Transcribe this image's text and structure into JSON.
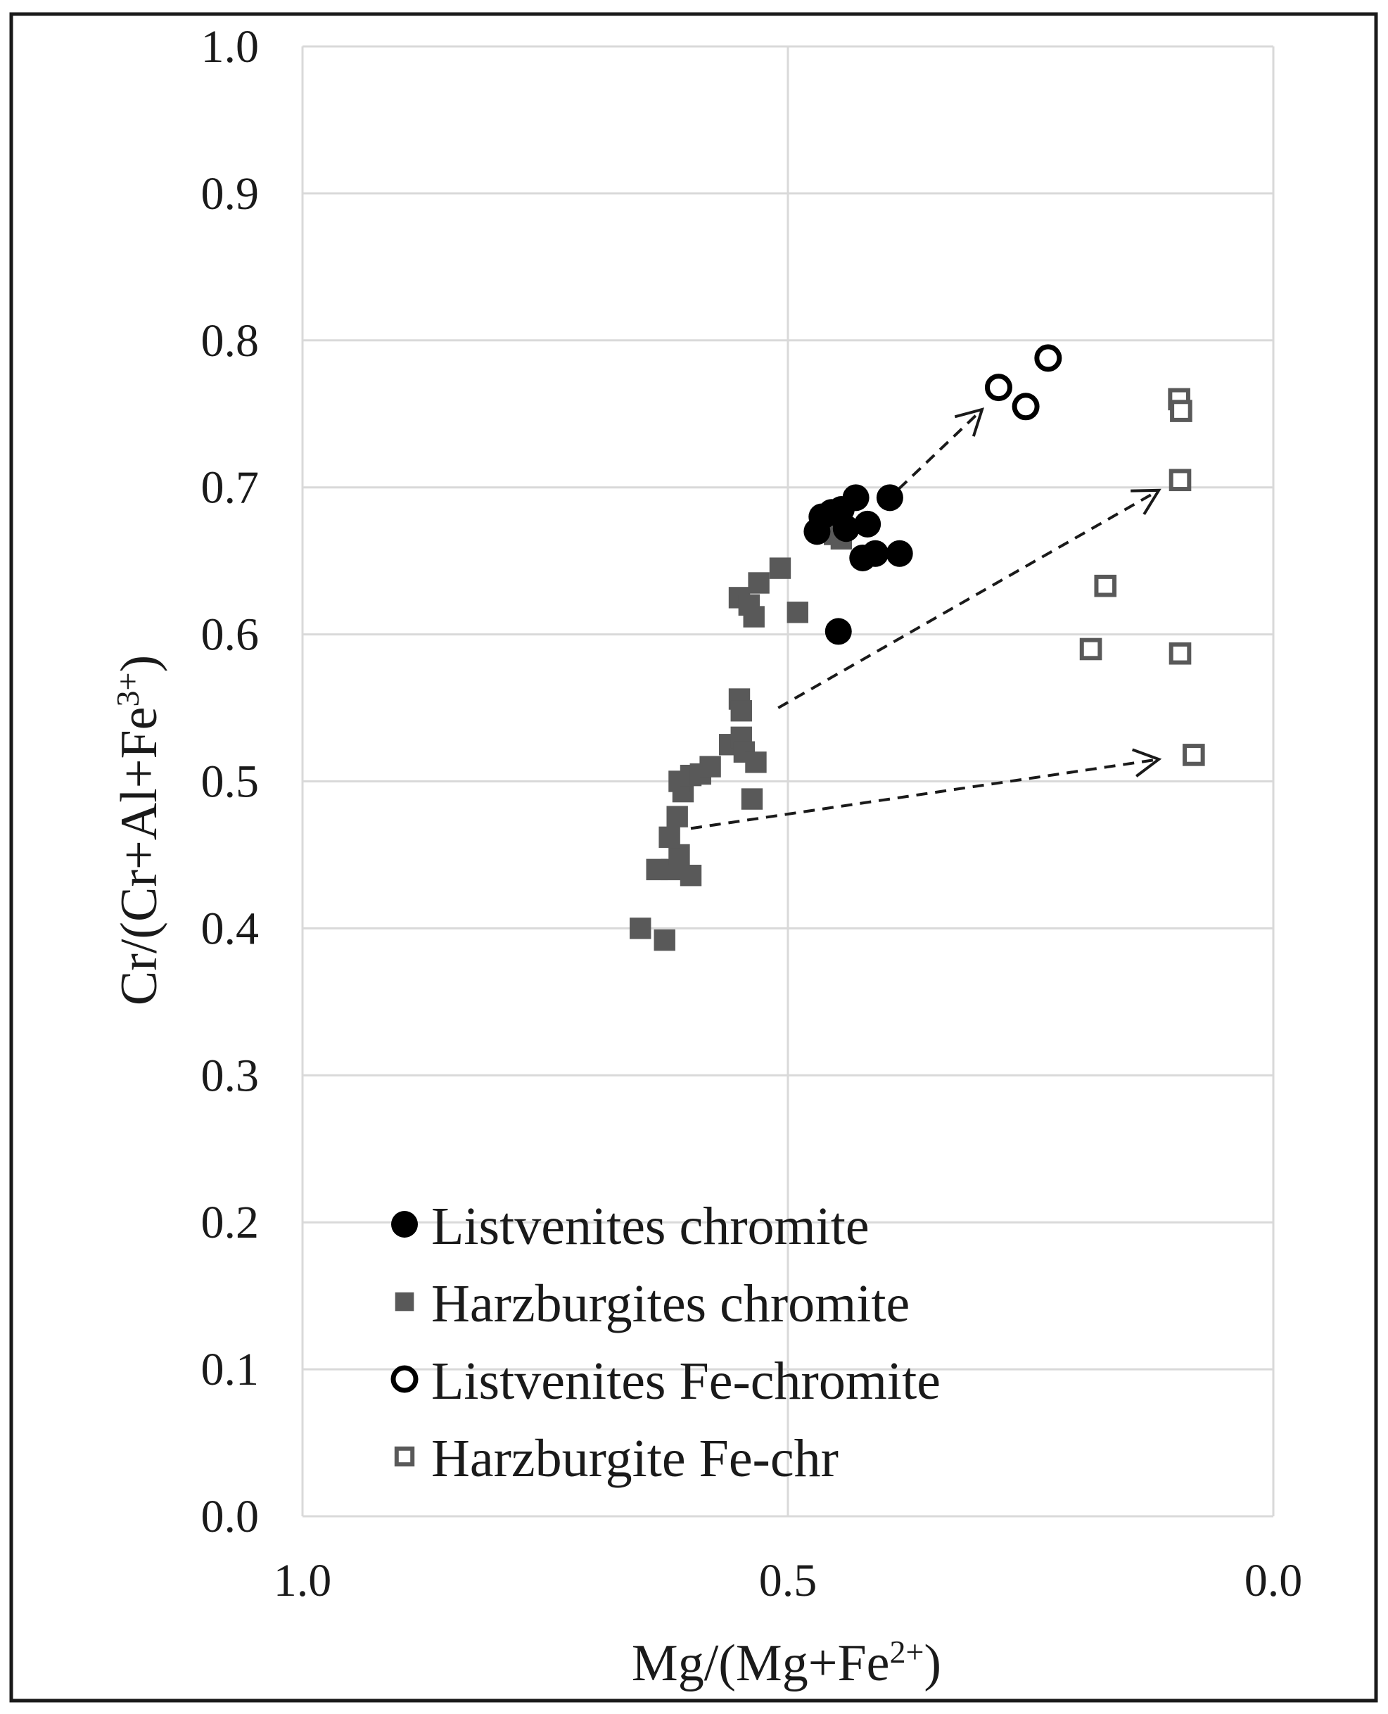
{
  "chart_data": {
    "type": "scatter",
    "xlabel": "Mg/(Mg+Fe2+)",
    "ylabel": "Cr/(Cr+Al+Fe3+)",
    "xlabel_parts": {
      "base": "Mg/(Mg+Fe",
      "sup": "2+",
      "end": ")"
    },
    "ylabel_parts": {
      "base": "Cr/(Cr+Al+Fe",
      "sup": "3+",
      "end": ")"
    },
    "xlim": [
      1.0,
      0.0
    ],
    "ylim": [
      0.0,
      1.0
    ],
    "x_reversed": true,
    "grid": true,
    "x_ticks": [
      "1.0",
      "0.5",
      "0.0"
    ],
    "y_ticks": [
      "0.0",
      "0.1",
      "0.2",
      "0.3",
      "0.4",
      "0.5",
      "0.6",
      "0.7",
      "0.8",
      "0.9",
      "1.0"
    ],
    "legend_position": "bottom-left",
    "series": [
      {
        "name": "Listvenites chromite",
        "marker": "filled-circle",
        "color": "#000000",
        "points": [
          {
            "x": 0.47,
            "y": 0.67
          },
          {
            "x": 0.465,
            "y": 0.68
          },
          {
            "x": 0.455,
            "y": 0.683
          },
          {
            "x": 0.445,
            "y": 0.685
          },
          {
            "x": 0.43,
            "y": 0.693
          },
          {
            "x": 0.418,
            "y": 0.675
          },
          {
            "x": 0.423,
            "y": 0.652
          },
          {
            "x": 0.41,
            "y": 0.655
          },
          {
            "x": 0.44,
            "y": 0.672
          },
          {
            "x": 0.395,
            "y": 0.693
          },
          {
            "x": 0.385,
            "y": 0.655
          },
          {
            "x": 0.448,
            "y": 0.602
          }
        ]
      },
      {
        "name": "Harzburgites chromite",
        "marker": "filled-square",
        "color": "#595959",
        "points": [
          {
            "x": 0.652,
            "y": 0.4
          },
          {
            "x": 0.627,
            "y": 0.392
          },
          {
            "x": 0.635,
            "y": 0.44
          },
          {
            "x": 0.62,
            "y": 0.44
          },
          {
            "x": 0.6,
            "y": 0.436
          },
          {
            "x": 0.612,
            "y": 0.45
          },
          {
            "x": 0.622,
            "y": 0.462
          },
          {
            "x": 0.614,
            "y": 0.476
          },
          {
            "x": 0.608,
            "y": 0.493
          },
          {
            "x": 0.612,
            "y": 0.5
          },
          {
            "x": 0.6,
            "y": 0.504
          },
          {
            "x": 0.59,
            "y": 0.505
          },
          {
            "x": 0.58,
            "y": 0.51
          },
          {
            "x": 0.56,
            "y": 0.525
          },
          {
            "x": 0.548,
            "y": 0.53
          },
          {
            "x": 0.545,
            "y": 0.52
          },
          {
            "x": 0.533,
            "y": 0.513
          },
          {
            "x": 0.537,
            "y": 0.488
          },
          {
            "x": 0.55,
            "y": 0.556
          },
          {
            "x": 0.548,
            "y": 0.548
          },
          {
            "x": 0.55,
            "y": 0.625
          },
          {
            "x": 0.54,
            "y": 0.62
          },
          {
            "x": 0.535,
            "y": 0.612
          },
          {
            "x": 0.53,
            "y": 0.635
          },
          {
            "x": 0.508,
            "y": 0.645
          },
          {
            "x": 0.49,
            "y": 0.615
          },
          {
            "x": 0.46,
            "y": 0.672
          },
          {
            "x": 0.452,
            "y": 0.668
          },
          {
            "x": 0.445,
            "y": 0.665
          }
        ]
      },
      {
        "name": "Listvenites Fe-chromite",
        "marker": "open-circle",
        "color": "#000000",
        "points": [
          {
            "x": 0.283,
            "y": 0.768
          },
          {
            "x": 0.255,
            "y": 0.755
          },
          {
            "x": 0.232,
            "y": 0.788
          }
        ]
      },
      {
        "name": "Harzburgite Fe-chr",
        "marker": "open-square",
        "color": "#595959",
        "points": [
          {
            "x": 0.097,
            "y": 0.76
          },
          {
            "x": 0.095,
            "y": 0.752
          },
          {
            "x": 0.096,
            "y": 0.705
          },
          {
            "x": 0.173,
            "y": 0.633
          },
          {
            "x": 0.188,
            "y": 0.59
          },
          {
            "x": 0.096,
            "y": 0.587
          },
          {
            "x": 0.082,
            "y": 0.518
          }
        ]
      }
    ],
    "arrows": [
      {
        "from": {
          "x": 0.4,
          "y": 0.69
        },
        "to": {
          "x": 0.3,
          "y": 0.753
        }
      },
      {
        "from": {
          "x": 0.51,
          "y": 0.55
        },
        "to": {
          "x": 0.118,
          "y": 0.698
        }
      },
      {
        "from": {
          "x": 0.6,
          "y": 0.468
        },
        "to": {
          "x": 0.118,
          "y": 0.515
        }
      }
    ]
  }
}
